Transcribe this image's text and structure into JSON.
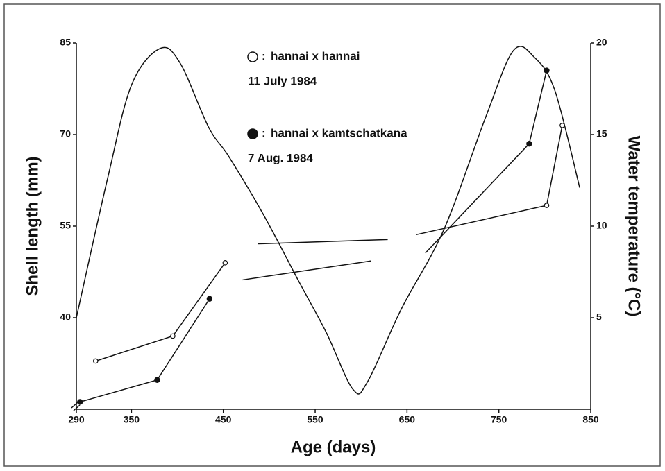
{
  "chart_data": {
    "type": "line",
    "x_label": "Age (days)",
    "y_label": "Shell length (mm)",
    "y2_label": "Water temperature (°C)",
    "xlim": [
      290,
      850
    ],
    "xticks": [
      290,
      350,
      450,
      550,
      650,
      750,
      850
    ],
    "ylim": [
      25,
      85
    ],
    "yticks": [
      40,
      55,
      70,
      85
    ],
    "y2lim": [
      0,
      20
    ],
    "y2ticks": [
      5,
      10,
      15,
      20
    ],
    "legend_separator": ":",
    "series": [
      {
        "name": "hannai x hannai",
        "note": "11 July 1984",
        "marker": "open",
        "color": "#111111",
        "x": [
          311,
          395,
          452,
          null,
          802,
          819
        ],
        "values": [
          32.9,
          37.0,
          49.0,
          null,
          58.4,
          71.5
        ]
      },
      {
        "name": "hannai x kamtschatkana",
        "note": "7 Aug. 1984",
        "marker": "filled",
        "color": "#111111",
        "x": [
          294,
          378,
          435,
          null,
          783,
          802
        ],
        "values": [
          26.2,
          29.8,
          43.1,
          null,
          68.5,
          80.5
        ]
      },
      {
        "axis": "y2",
        "smooth": true,
        "color": "#111111",
        "x": [
          290,
          324,
          350,
          381,
          403,
          434,
          456,
          494,
          532,
          562,
          591,
          607,
          644,
          690,
          736,
          766,
          789,
          811,
          838
        ],
        "values": [
          5.0,
          12.6,
          17.7,
          19.7,
          18.9,
          15.4,
          13.8,
          10.6,
          7.0,
          4.2,
          1.1,
          1.5,
          5.5,
          9.8,
          16.0,
          19.6,
          19.2,
          17.4,
          12.1
        ]
      }
    ],
    "segments": [
      {
        "x": [
          471,
          611
        ],
        "values": [
          46.2,
          49.3
        ]
      },
      {
        "x": [
          488,
          629
        ],
        "values": [
          52.1,
          52.8
        ]
      },
      {
        "x": [
          660,
          802
        ],
        "values": [
          53.6,
          58.4
        ]
      },
      {
        "x": [
          670,
          783
        ],
        "values": [
          50.6,
          68.5
        ]
      }
    ]
  }
}
